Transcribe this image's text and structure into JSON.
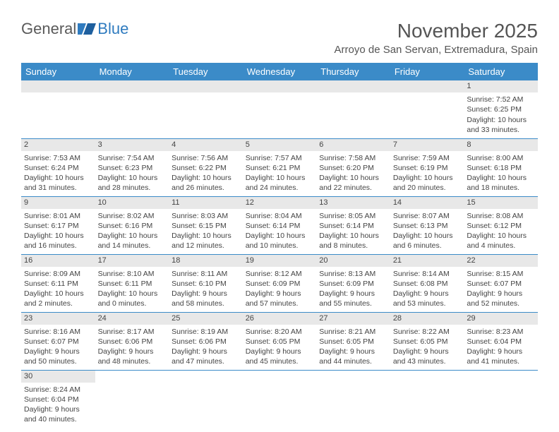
{
  "logo": {
    "text1": "General",
    "text2": "Blue"
  },
  "title": "November 2025",
  "location": "Arroyo de San Servan, Extremadura, Spain",
  "header_bg": "#3b8bc8",
  "daynum_bg": "#e8e8e8",
  "weekdays": [
    "Sunday",
    "Monday",
    "Tuesday",
    "Wednesday",
    "Thursday",
    "Friday",
    "Saturday"
  ],
  "weeks": [
    [
      null,
      null,
      null,
      null,
      null,
      null,
      {
        "n": "1",
        "sr": "7:52 AM",
        "ss": "6:25 PM",
        "dl": "10 hours and 33 minutes."
      }
    ],
    [
      {
        "n": "2",
        "sr": "7:53 AM",
        "ss": "6:24 PM",
        "dl": "10 hours and 31 minutes."
      },
      {
        "n": "3",
        "sr": "7:54 AM",
        "ss": "6:23 PM",
        "dl": "10 hours and 28 minutes."
      },
      {
        "n": "4",
        "sr": "7:56 AM",
        "ss": "6:22 PM",
        "dl": "10 hours and 26 minutes."
      },
      {
        "n": "5",
        "sr": "7:57 AM",
        "ss": "6:21 PM",
        "dl": "10 hours and 24 minutes."
      },
      {
        "n": "6",
        "sr": "7:58 AM",
        "ss": "6:20 PM",
        "dl": "10 hours and 22 minutes."
      },
      {
        "n": "7",
        "sr": "7:59 AM",
        "ss": "6:19 PM",
        "dl": "10 hours and 20 minutes."
      },
      {
        "n": "8",
        "sr": "8:00 AM",
        "ss": "6:18 PM",
        "dl": "10 hours and 18 minutes."
      }
    ],
    [
      {
        "n": "9",
        "sr": "8:01 AM",
        "ss": "6:17 PM",
        "dl": "10 hours and 16 minutes."
      },
      {
        "n": "10",
        "sr": "8:02 AM",
        "ss": "6:16 PM",
        "dl": "10 hours and 14 minutes."
      },
      {
        "n": "11",
        "sr": "8:03 AM",
        "ss": "6:15 PM",
        "dl": "10 hours and 12 minutes."
      },
      {
        "n": "12",
        "sr": "8:04 AM",
        "ss": "6:14 PM",
        "dl": "10 hours and 10 minutes."
      },
      {
        "n": "13",
        "sr": "8:05 AM",
        "ss": "6:14 PM",
        "dl": "10 hours and 8 minutes."
      },
      {
        "n": "14",
        "sr": "8:07 AM",
        "ss": "6:13 PM",
        "dl": "10 hours and 6 minutes."
      },
      {
        "n": "15",
        "sr": "8:08 AM",
        "ss": "6:12 PM",
        "dl": "10 hours and 4 minutes."
      }
    ],
    [
      {
        "n": "16",
        "sr": "8:09 AM",
        "ss": "6:11 PM",
        "dl": "10 hours and 2 minutes."
      },
      {
        "n": "17",
        "sr": "8:10 AM",
        "ss": "6:11 PM",
        "dl": "10 hours and 0 minutes."
      },
      {
        "n": "18",
        "sr": "8:11 AM",
        "ss": "6:10 PM",
        "dl": "9 hours and 58 minutes."
      },
      {
        "n": "19",
        "sr": "8:12 AM",
        "ss": "6:09 PM",
        "dl": "9 hours and 57 minutes."
      },
      {
        "n": "20",
        "sr": "8:13 AM",
        "ss": "6:09 PM",
        "dl": "9 hours and 55 minutes."
      },
      {
        "n": "21",
        "sr": "8:14 AM",
        "ss": "6:08 PM",
        "dl": "9 hours and 53 minutes."
      },
      {
        "n": "22",
        "sr": "8:15 AM",
        "ss": "6:07 PM",
        "dl": "9 hours and 52 minutes."
      }
    ],
    [
      {
        "n": "23",
        "sr": "8:16 AM",
        "ss": "6:07 PM",
        "dl": "9 hours and 50 minutes."
      },
      {
        "n": "24",
        "sr": "8:17 AM",
        "ss": "6:06 PM",
        "dl": "9 hours and 48 minutes."
      },
      {
        "n": "25",
        "sr": "8:19 AM",
        "ss": "6:06 PM",
        "dl": "9 hours and 47 minutes."
      },
      {
        "n": "26",
        "sr": "8:20 AM",
        "ss": "6:05 PM",
        "dl": "9 hours and 45 minutes."
      },
      {
        "n": "27",
        "sr": "8:21 AM",
        "ss": "6:05 PM",
        "dl": "9 hours and 44 minutes."
      },
      {
        "n": "28",
        "sr": "8:22 AM",
        "ss": "6:05 PM",
        "dl": "9 hours and 43 minutes."
      },
      {
        "n": "29",
        "sr": "8:23 AM",
        "ss": "6:04 PM",
        "dl": "9 hours and 41 minutes."
      }
    ],
    [
      {
        "n": "30",
        "sr": "8:24 AM",
        "ss": "6:04 PM",
        "dl": "9 hours and 40 minutes."
      },
      null,
      null,
      null,
      null,
      null,
      null
    ]
  ],
  "labels": {
    "sunrise": "Sunrise:",
    "sunset": "Sunset:",
    "daylight": "Daylight:"
  }
}
